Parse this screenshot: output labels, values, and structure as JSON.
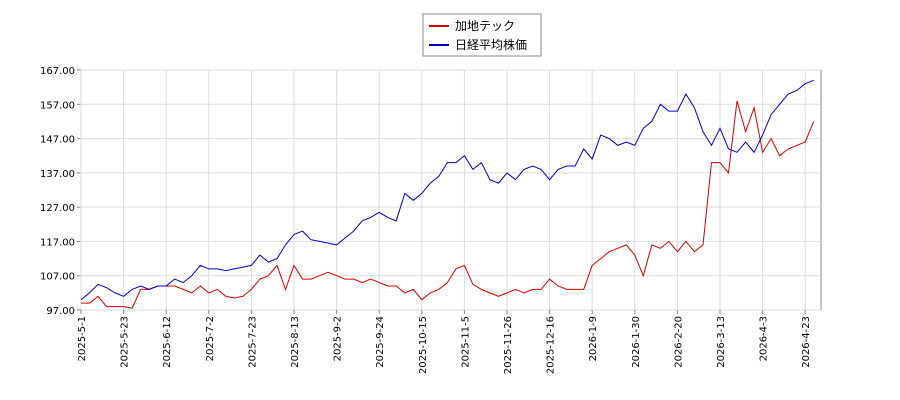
{
  "chart_data": {
    "type": "line",
    "categories": [
      "2025-5-1",
      null,
      null,
      null,
      null,
      "2025-5-23",
      null,
      null,
      null,
      null,
      "2025-6-12",
      null,
      null,
      null,
      null,
      "2025-7-2",
      null,
      null,
      null,
      null,
      "2025-7-23",
      null,
      null,
      null,
      null,
      "2025-8-13",
      null,
      null,
      null,
      null,
      "2025-9-2",
      null,
      null,
      null,
      null,
      "2025-9-24",
      null,
      null,
      null,
      null,
      "2025-10-15",
      null,
      null,
      null,
      null,
      "2025-11-5",
      null,
      null,
      null,
      null,
      "2025-11-26",
      null,
      null,
      null,
      null,
      "2025-12-16",
      null,
      null,
      null,
      null,
      "2026-1-9",
      null,
      null,
      null,
      null,
      "2026-1-30",
      null,
      null,
      null,
      null,
      "2026-2-20",
      null,
      null,
      null,
      null,
      "2026-3-13",
      null,
      null,
      null,
      null,
      "2026-4-3",
      null,
      null,
      null,
      null,
      "2026-4-23",
      null
    ],
    "series": [
      {
        "name": "加地テック",
        "color": "#dd0000",
        "values": [
          99,
          99,
          101,
          98,
          98,
          98,
          97.5,
          103,
          103,
          104,
          104,
          104,
          103,
          102,
          104,
          102,
          103,
          101,
          100.5,
          101,
          103,
          106,
          107,
          110,
          103,
          110,
          106,
          106,
          107,
          108,
          107,
          106,
          106,
          105,
          106,
          105,
          104,
          104,
          102,
          103,
          100,
          102,
          103,
          105,
          109,
          110,
          104.5,
          103,
          102,
          101,
          102,
          103,
          102,
          103,
          103,
          106,
          104,
          103,
          103,
          103,
          110,
          112,
          114,
          115,
          116,
          113,
          107,
          116,
          115,
          117,
          114,
          117,
          114,
          116,
          140,
          140,
          137,
          158,
          149,
          156,
          143,
          147,
          142,
          144,
          145,
          146,
          152
        ]
      },
      {
        "name": "日経平均株価",
        "color": "#0000cc",
        "values": [
          100,
          102,
          104.5,
          103.5,
          102,
          101,
          103,
          104,
          103,
          104,
          104,
          106,
          105,
          107,
          110,
          109,
          109,
          108.5,
          109,
          109.5,
          110,
          113,
          111,
          112,
          116,
          119,
          120,
          117.5,
          117,
          116.5,
          116,
          118,
          120,
          123,
          124,
          125.5,
          124,
          123,
          131,
          129,
          131,
          134,
          136,
          140,
          140,
          142,
          138,
          140,
          135,
          134,
          137,
          135,
          138,
          139,
          138,
          135,
          138,
          139,
          139,
          144,
          141,
          148,
          147,
          145,
          146,
          145,
          150,
          152,
          157,
          155,
          155,
          160,
          156,
          149,
          145,
          150,
          144,
          143,
          146,
          143,
          148,
          154,
          157,
          160,
          161,
          163,
          164
        ]
      }
    ],
    "ylim": [
      97,
      167
    ],
    "yticks": [
      {
        "value": 97,
        "label": "97.00"
      },
      {
        "value": 107,
        "label": "107.00"
      },
      {
        "value": 117,
        "label": "117.00"
      },
      {
        "value": 127,
        "label": "127.00"
      },
      {
        "value": 137,
        "label": "137.00"
      },
      {
        "value": 147,
        "label": "147.00"
      },
      {
        "value": 157,
        "label": "157.00"
      },
      {
        "value": 167,
        "label": "167.00"
      }
    ],
    "grid": true,
    "legend": "top"
  }
}
